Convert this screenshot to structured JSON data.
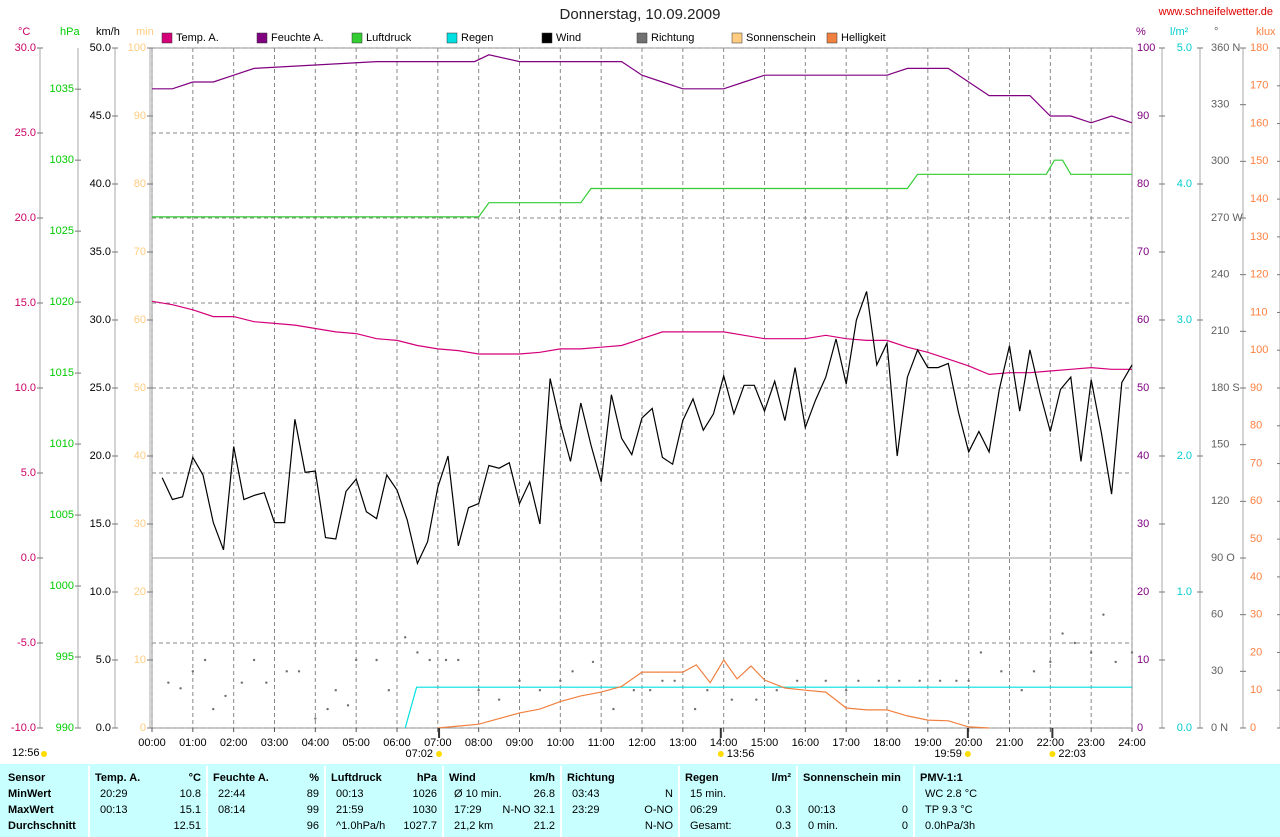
{
  "chart_data": {
    "type": "line",
    "title": "Donnerstag, 10.09.2009",
    "source": "www.schneifelwetter.de",
    "grid": true,
    "xlim": [
      0,
      24
    ],
    "xticks": [
      {
        "value": 0,
        "label": "00:00"
      },
      {
        "value": 1,
        "label": "01:00"
      },
      {
        "value": 2,
        "label": "02:00"
      },
      {
        "value": 3,
        "label": "03:00"
      },
      {
        "value": 4,
        "label": "04:00"
      },
      {
        "value": 5,
        "label": "05:00"
      },
      {
        "value": 6,
        "label": "06:00"
      },
      {
        "value": 7,
        "label": "07:00"
      },
      {
        "value": 8,
        "label": "08:00"
      },
      {
        "value": 9,
        "label": "09:00"
      },
      {
        "value": 10,
        "label": "10:00"
      },
      {
        "value": 11,
        "label": "11:00"
      },
      {
        "value": 12,
        "label": "12:00"
      },
      {
        "value": 13,
        "label": "13:00"
      },
      {
        "value": 14,
        "label": "14:00"
      },
      {
        "value": 15,
        "label": "15:00"
      },
      {
        "value": 16,
        "label": "16:00"
      },
      {
        "value": 17,
        "label": "17:00"
      },
      {
        "value": 18,
        "label": "18:00"
      },
      {
        "value": 19,
        "label": "19:00"
      },
      {
        "value": 20,
        "label": "20:00"
      },
      {
        "value": 21,
        "label": "21:00"
      },
      {
        "value": 22,
        "label": "22:00"
      },
      {
        "value": 23,
        "label": "23:00"
      },
      {
        "value": 24,
        "label": "24:00"
      }
    ],
    "axes": [
      {
        "key": "temp",
        "unit": "°C",
        "color": "#cc0066",
        "lim": [
          -10,
          30
        ],
        "ticks": [
          {
            "value": 30,
            "label": "30.0"
          },
          {
            "value": 25,
            "label": "25.0"
          },
          {
            "value": 20,
            "label": "20.0"
          },
          {
            "value": 15,
            "label": "15.0"
          },
          {
            "value": 10,
            "label": "10.0"
          },
          {
            "value": 5,
            "label": "5.0"
          },
          {
            "value": 0,
            "label": "0.0"
          },
          {
            "value": -5,
            "label": "-5.0"
          },
          {
            "value": -10,
            "label": "-10.0"
          }
        ]
      },
      {
        "key": "hpa",
        "unit": "hPa",
        "color": "#00cc00",
        "lim": [
          990,
          1037.9
        ],
        "ticks": [
          1035,
          1030,
          1025,
          1020,
          1015,
          1010,
          1005,
          1000,
          995,
          990
        ]
      },
      {
        "key": "kmh",
        "unit": "km/h",
        "color": "#000000",
        "lim": [
          0,
          50
        ],
        "ticks": [
          {
            "value": 50,
            "label": "50.0"
          },
          {
            "value": 45,
            "label": "45.0"
          },
          {
            "value": 40,
            "label": "40.0"
          },
          {
            "value": 35,
            "label": "35.0"
          },
          {
            "value": 30,
            "label": "30.0"
          },
          {
            "value": 25,
            "label": "25.0"
          },
          {
            "value": 20,
            "label": "20.0"
          },
          {
            "value": 15,
            "label": "15.0"
          },
          {
            "value": 10,
            "label": "10.0"
          },
          {
            "value": 5,
            "label": "5.0"
          },
          {
            "value": 0,
            "label": "0.0"
          }
        ]
      },
      {
        "key": "min",
        "unit": "min",
        "color": "#ffcc80",
        "lim": [
          0,
          100
        ],
        "ticks": [
          100,
          90,
          80,
          70,
          60,
          50,
          40,
          30,
          20,
          10,
          0
        ]
      },
      {
        "key": "pct",
        "unit": "%",
        "color": "#800080",
        "lim": [
          0,
          100
        ],
        "ticks": [
          100,
          90,
          80,
          70,
          60,
          50,
          40,
          30,
          20,
          10,
          0
        ]
      },
      {
        "key": "rain",
        "unit": "l/m²",
        "color": "#00cccc",
        "lim": [
          0,
          5
        ],
        "ticks": [
          {
            "value": 5,
            "label": "5.0"
          },
          {
            "value": 4,
            "label": "4.0"
          },
          {
            "value": 3,
            "label": "3.0"
          },
          {
            "value": 2,
            "label": "2.0"
          },
          {
            "value": 1,
            "label": "1.0"
          },
          {
            "value": 0,
            "label": "0.0"
          }
        ]
      },
      {
        "key": "dir",
        "unit": "°",
        "color": "#606060",
        "lim": [
          0,
          360
        ],
        "ticks": [
          {
            "value": 360,
            "label": "360 N"
          },
          330,
          300,
          {
            "value": 270,
            "label": "270 W"
          },
          240,
          210,
          {
            "value": 180,
            "label": "180 S"
          },
          150,
          120,
          {
            "value": 90,
            "label": "90 O"
          },
          60,
          30,
          {
            "value": 0,
            "label": "0 N"
          }
        ]
      },
      {
        "key": "klux",
        "unit": "klux",
        "color": "#ff8040",
        "lim": [
          0,
          180
        ],
        "ticks": [
          180,
          170,
          160,
          150,
          140,
          130,
          120,
          110,
          100,
          90,
          80,
          70,
          60,
          50,
          40,
          30,
          20,
          10,
          0
        ]
      }
    ],
    "series": [
      {
        "name": "Temp. A.",
        "color": "#d4007a",
        "axis": "temp",
        "x": [
          0,
          0.5,
          1,
          1.5,
          2,
          2.5,
          3,
          3.5,
          4,
          4.5,
          5,
          5.5,
          6,
          6.5,
          7,
          7.5,
          8,
          8.5,
          9,
          9.5,
          10,
          10.5,
          11,
          11.5,
          12,
          12.5,
          13,
          13.5,
          14,
          14.5,
          15,
          15.5,
          16,
          16.5,
          17,
          17.5,
          18,
          18.5,
          19,
          19.5,
          20,
          20.5,
          21,
          21.5,
          22,
          22.5,
          23,
          23.5,
          24
        ],
        "values": [
          15.1,
          14.9,
          14.6,
          14.2,
          14.2,
          13.9,
          13.8,
          13.7,
          13.5,
          13.3,
          13.2,
          12.9,
          12.8,
          12.5,
          12.3,
          12.2,
          12.0,
          12.0,
          12.0,
          12.1,
          12.3,
          12.3,
          12.4,
          12.5,
          12.9,
          13.3,
          13.3,
          13.3,
          13.3,
          13.1,
          12.9,
          12.9,
          12.9,
          13.1,
          12.9,
          12.8,
          12.8,
          12.4,
          12.1,
          11.7,
          11.3,
          10.8,
          10.9,
          10.9,
          11.0,
          11.1,
          11.2,
          11.1,
          11.1
        ]
      },
      {
        "name": "Feuchte A.",
        "color": "#800080",
        "axis": "pct",
        "x": [
          0,
          0.5,
          1,
          1.5,
          2,
          2.5,
          5.5,
          7.9,
          8.25,
          9,
          11.5,
          12,
          12.5,
          13,
          14,
          14.5,
          15,
          18,
          18.5,
          19.5,
          20,
          20.5,
          21.5,
          22,
          22.5,
          23,
          23.5,
          24
        ],
        "values": [
          94,
          94,
          95,
          95,
          96,
          97,
          98,
          98,
          99,
          98,
          98,
          96,
          95,
          94,
          94,
          95,
          96,
          96,
          97,
          97,
          95,
          93,
          93,
          90,
          90,
          89,
          90,
          89
        ]
      },
      {
        "name": "Luftdruck",
        "color": "#33cc33",
        "axis": "hpa",
        "x": [
          0,
          8,
          8.25,
          10.5,
          10.75,
          18.5,
          18.75,
          21.9,
          22.1,
          22.3,
          22.5,
          24
        ],
        "values": [
          1026,
          1026,
          1027,
          1027,
          1028,
          1028,
          1029,
          1029,
          1030,
          1030,
          1029,
          1029
        ]
      },
      {
        "name": "Regen",
        "color": "#00e0e0",
        "axis": "rain",
        "x": [
          6.2,
          6.48,
          24
        ],
        "values": [
          0,
          0.3,
          0.3
        ]
      },
      {
        "name": "Wind",
        "color": "#000000",
        "axis": "kmh",
        "x": [
          0.25,
          0.5,
          0.75,
          1,
          1.25,
          1.5,
          1.75,
          2,
          2.25,
          2.5,
          2.75,
          3,
          3.25,
          3.5,
          3.75,
          4,
          4.25,
          4.5,
          4.75,
          5,
          5.25,
          5.5,
          5.75,
          6,
          6.25,
          6.5,
          6.75,
          7,
          7.25,
          7.5,
          7.75,
          8,
          8.25,
          8.5,
          8.75,
          9,
          9.25,
          9.5,
          9.75,
          10,
          10.25,
          10.5,
          10.75,
          11,
          11.25,
          11.5,
          11.75,
          12,
          12.25,
          12.5,
          12.75,
          13,
          13.25,
          13.5,
          13.75,
          14,
          14.25,
          14.5,
          14.75,
          15,
          15.25,
          15.5,
          15.75,
          16,
          16.25,
          16.5,
          16.75,
          17,
          17.25,
          17.5,
          17.75,
          18,
          18.25,
          18.5,
          18.75,
          19,
          19.25,
          19.5,
          19.75,
          20,
          20.25,
          20.5,
          20.75,
          21,
          21.25,
          21.5,
          21.75,
          22,
          22.25,
          22.5,
          22.75,
          23,
          23.25,
          23.5,
          23.75,
          24
        ],
        "values": [
          18.4,
          16.8,
          17.0,
          19.9,
          18.6,
          15.1,
          13.1,
          20.7,
          16.8,
          17.1,
          17.3,
          15.1,
          15.1,
          22.7,
          18.8,
          18.9,
          14.0,
          13.9,
          17.4,
          18.3,
          15.9,
          15.4,
          18.6,
          17.5,
          15.3,
          12.1,
          13.7,
          17.7,
          20.0,
          13.4,
          16.2,
          16.5,
          19.3,
          19.1,
          19.5,
          16.5,
          18.1,
          15.0,
          25.7,
          22.4,
          19.6,
          23.9,
          20.8,
          18.1,
          24.5,
          21.3,
          20.1,
          22.8,
          23.5,
          19.9,
          19.4,
          22.6,
          24.2,
          21.9,
          23.1,
          25.9,
          23.1,
          25.2,
          25.2,
          23.3,
          25.5,
          22.6,
          26.5,
          22.1,
          24.1,
          25.8,
          28.6,
          25.3,
          30.0,
          32.1,
          26.7,
          28.3,
          20.0,
          25.8,
          27.8,
          26.5,
          26.5,
          26.8,
          23.2,
          20.3,
          21.8,
          20.3,
          24.9,
          28.1,
          23.3,
          27.8,
          24.6,
          21.8,
          24.9,
          25.8,
          19.6,
          25.6,
          21.7,
          17.2,
          25.4,
          26.7
        ]
      },
      {
        "name": "Richtung",
        "color": "#707070",
        "axis": "dir",
        "type": "scatter",
        "x": [
          0.4,
          0.7,
          1.0,
          1.3,
          1.5,
          1.8,
          2.2,
          2.5,
          2.8,
          3.3,
          3.6,
          4.0,
          4.3,
          4.5,
          4.8,
          5.0,
          5.5,
          5.8,
          6.2,
          6.5,
          6.8,
          7.2,
          7.5,
          8.0,
          8.5,
          9.0,
          9.5,
          10.0,
          10.3,
          10.8,
          11.3,
          11.8,
          12.2,
          12.5,
          12.8,
          13.3,
          13.6,
          14.2,
          14.8,
          15.3,
          15.8,
          16.5,
          17.0,
          17.3,
          17.8,
          18.3,
          18.8,
          19.3,
          19.7,
          20.0,
          20.3,
          20.8,
          21.3,
          21.6,
          22.0,
          22.3,
          22.6,
          23.0,
          23.3,
          23.6,
          24.0
        ],
        "values": [
          24,
          21,
          30,
          36,
          10,
          17,
          24,
          36,
          24,
          30,
          30,
          5,
          10,
          20,
          12,
          36,
          36,
          20,
          48,
          40,
          36,
          36,
          36,
          20,
          15,
          25,
          20,
          25,
          30,
          35,
          10,
          20,
          20,
          25,
          25,
          10,
          20,
          15,
          15,
          20,
          25,
          25,
          20,
          25,
          25,
          25,
          25,
          25,
          25,
          25,
          40,
          30,
          20,
          30,
          35,
          50,
          45,
          40,
          60,
          35,
          40
        ]
      },
      {
        "name": "Sonnenschein",
        "color": "#ffcc80",
        "axis": "min",
        "x": [],
        "values": []
      },
      {
        "name": "Helligkeit",
        "color": "#f08040",
        "axis": "klux",
        "x": [
          7,
          7.5,
          8,
          8.5,
          9,
          9.5,
          10,
          10.5,
          11,
          11.5,
          12,
          12.5,
          13,
          13.33,
          13.67,
          14,
          14.33,
          14.67,
          15,
          15.5,
          16,
          16.5,
          17,
          17.5,
          18,
          18.5,
          19,
          19.5,
          20,
          20.5
        ],
        "values": [
          0,
          0.5,
          1,
          2.5,
          4,
          5,
          7,
          8.5,
          9.5,
          11,
          14.8,
          14.8,
          14.8,
          16.7,
          12,
          18,
          13,
          16.4,
          12.7,
          10.6,
          10,
          9.5,
          5.3,
          4.8,
          4.8,
          3.2,
          2.1,
          1.9,
          0.3,
          0
        ]
      }
    ],
    "events": [
      {
        "time": 7.03,
        "label": "07:02"
      },
      {
        "time": 13.93,
        "label": "13:56"
      },
      {
        "time": 19.98,
        "label": "19:59"
      },
      {
        "time": 22.05,
        "label": "22:03"
      }
    ],
    "corner_note": "12:56"
  },
  "stats": {
    "columns": [
      {
        "name": "Sensor",
        "rows": [
          {
            "left": "MinWert"
          },
          {
            "left": "MaxWert"
          },
          {
            "left": "Durchschnitt"
          }
        ]
      },
      {
        "name": "Temp. A.",
        "unit": "°C",
        "rows": [
          {
            "left": "20:29",
            "right": "10.8"
          },
          {
            "left": "00:13",
            "right": "15.1"
          },
          {
            "right": "12.51"
          }
        ]
      },
      {
        "name": "Feuchte A.",
        "unit": "%",
        "rows": [
          {
            "left": "22:44",
            "right": "89"
          },
          {
            "left": "08:14",
            "right": "99"
          },
          {
            "right": "96"
          }
        ]
      },
      {
        "name": "Luftdruck",
        "unit": "hPa",
        "rows": [
          {
            "left": "00:13",
            "right": "1026"
          },
          {
            "left": "21:59",
            "right": "1030"
          },
          {
            "left": "^1.0hPa/h",
            "right": "1027.7"
          }
        ]
      },
      {
        "name": "Wind",
        "unit": "km/h",
        "rows": [
          {
            "left": "Ø 10 min.",
            "right": "26.8"
          },
          {
            "left": "17:29",
            "right": "N-NO 32.1"
          },
          {
            "left": "21,2 km",
            "right": "21.2"
          }
        ]
      },
      {
        "name": "Richtung",
        "rows": [
          {
            "left": "03:43",
            "right": "N"
          },
          {
            "left": "23:29",
            "right": "O-NO"
          },
          {
            "right": "N-NO"
          }
        ]
      },
      {
        "name": "Regen",
        "unit": "l/m²",
        "rows": [
          {
            "left": "15 min."
          },
          {
            "left": "06:29",
            "right": "0.3"
          },
          {
            "left": "Gesamt:",
            "right": "0.3"
          }
        ]
      },
      {
        "name": "Sonnenschein min",
        "rows": [
          {},
          {
            "left": "00:13",
            "right": "0"
          },
          {
            "left": "0 min.",
            "right": "0"
          }
        ]
      },
      {
        "name": "PMV-1:1",
        "rows": [
          {
            "left": "WC 2.8 °C"
          },
          {
            "left": "TP 9.3 °C"
          },
          {
            "left": "0.0hPa/3h"
          }
        ]
      }
    ]
  }
}
